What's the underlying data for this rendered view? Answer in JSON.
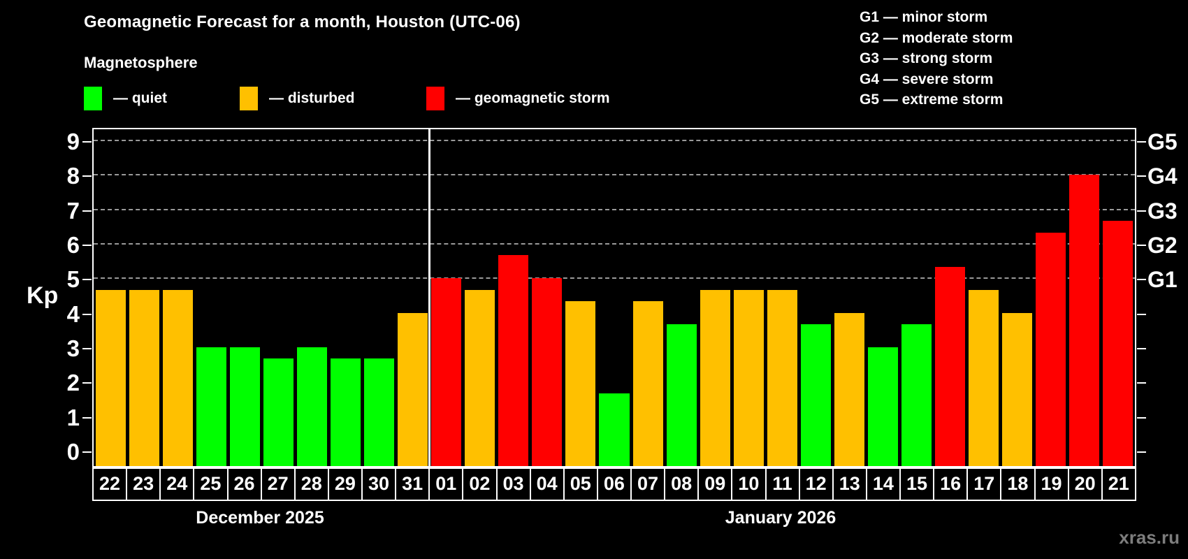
{
  "header": {
    "title": "Geomagnetic Forecast for a month, Houston (UTC-06)",
    "subtitle": "Magnetosphere"
  },
  "legend": {
    "items": [
      {
        "label": "— quiet",
        "color": "#00FF00",
        "status": "quiet"
      },
      {
        "label": "— disturbed",
        "color": "#FFC000",
        "status": "disturbed"
      },
      {
        "label": "— geomagnetic storm",
        "color": "#FF0000",
        "status": "storm"
      }
    ]
  },
  "g_legend": [
    {
      "label": "G1 — minor storm"
    },
    {
      "label": "G2 — moderate storm"
    },
    {
      "label": "G3 — strong storm"
    },
    {
      "label": "G4 — severe storm"
    },
    {
      "label": "G5 — extreme storm"
    }
  ],
  "chart_data": {
    "type": "bar",
    "ylabel": "Kp",
    "ylim": [
      0,
      9
    ],
    "yticks": [
      0,
      1,
      2,
      3,
      4,
      5,
      6,
      7,
      8,
      9
    ],
    "gridlines": [
      5,
      6,
      7,
      8,
      9
    ],
    "grid_style": "dashed",
    "legend_position": "top",
    "right_axis_labels": [
      {
        "kp": 5,
        "label": "G1"
      },
      {
        "kp": 6,
        "label": "G2"
      },
      {
        "kp": 7,
        "label": "G3"
      },
      {
        "kp": 8,
        "label": "G4"
      },
      {
        "kp": 9,
        "label": "G5"
      }
    ],
    "status_colors": {
      "quiet": "#00FF00",
      "disturbed": "#FFC000",
      "storm": "#FF0000"
    },
    "months": [
      {
        "label": "December 2025",
        "days": [
          {
            "day": "22",
            "kp": 4.67,
            "status": "disturbed"
          },
          {
            "day": "23",
            "kp": 4.67,
            "status": "disturbed"
          },
          {
            "day": "24",
            "kp": 4.67,
            "status": "disturbed"
          },
          {
            "day": "25",
            "kp": 3.0,
            "status": "quiet"
          },
          {
            "day": "26",
            "kp": 3.0,
            "status": "quiet"
          },
          {
            "day": "27",
            "kp": 2.67,
            "status": "quiet"
          },
          {
            "day": "28",
            "kp": 3.0,
            "status": "quiet"
          },
          {
            "day": "29",
            "kp": 2.67,
            "status": "quiet"
          },
          {
            "day": "30",
            "kp": 2.67,
            "status": "quiet"
          },
          {
            "day": "31",
            "kp": 4.0,
            "status": "disturbed"
          }
        ]
      },
      {
        "label": "January 2026",
        "days": [
          {
            "day": "01",
            "kp": 5.0,
            "status": "storm"
          },
          {
            "day": "02",
            "kp": 4.67,
            "status": "disturbed"
          },
          {
            "day": "03",
            "kp": 5.67,
            "status": "storm"
          },
          {
            "day": "04",
            "kp": 5.0,
            "status": "storm"
          },
          {
            "day": "05",
            "kp": 4.33,
            "status": "disturbed"
          },
          {
            "day": "06",
            "kp": 1.67,
            "status": "quiet"
          },
          {
            "day": "07",
            "kp": 4.33,
            "status": "disturbed"
          },
          {
            "day": "08",
            "kp": 3.67,
            "status": "quiet"
          },
          {
            "day": "09",
            "kp": 4.67,
            "status": "disturbed"
          },
          {
            "day": "10",
            "kp": 4.67,
            "status": "disturbed"
          },
          {
            "day": "11",
            "kp": 4.67,
            "status": "disturbed"
          },
          {
            "day": "12",
            "kp": 3.67,
            "status": "quiet"
          },
          {
            "day": "13",
            "kp": 4.0,
            "status": "disturbed"
          },
          {
            "day": "14",
            "kp": 3.0,
            "status": "quiet"
          },
          {
            "day": "15",
            "kp": 3.67,
            "status": "quiet"
          },
          {
            "day": "16",
            "kp": 5.33,
            "status": "storm"
          },
          {
            "day": "17",
            "kp": 4.67,
            "status": "disturbed"
          },
          {
            "day": "18",
            "kp": 4.0,
            "status": "disturbed"
          },
          {
            "day": "19",
            "kp": 6.33,
            "status": "storm"
          },
          {
            "day": "20",
            "kp": 8.0,
            "status": "storm"
          },
          {
            "day": "21",
            "kp": 6.67,
            "status": "storm"
          }
        ]
      }
    ]
  },
  "watermark": "xras.ru"
}
